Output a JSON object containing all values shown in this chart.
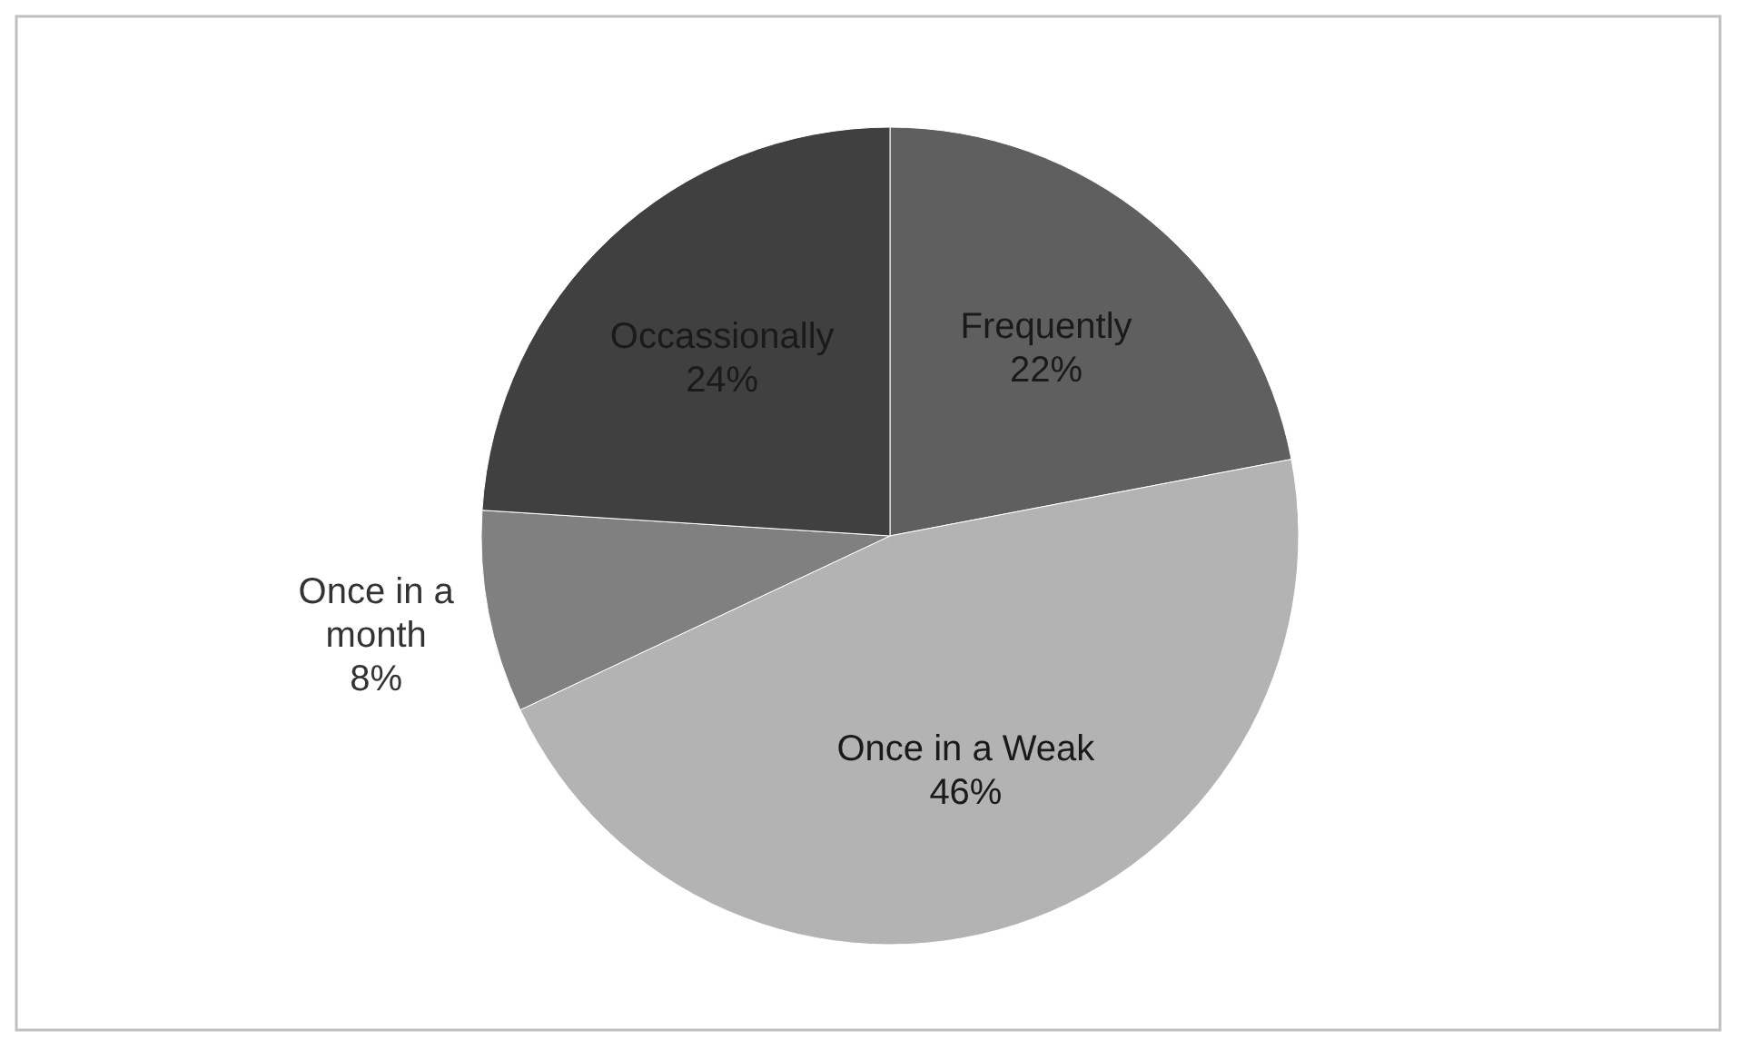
{
  "chart_data": {
    "type": "pie",
    "categories": [
      "Frequently",
      "Once in a Weak",
      "Once in a month",
      "Occassionally"
    ],
    "values": [
      22,
      46,
      8,
      24
    ],
    "value_labels": [
      "22%",
      "46%",
      "8%",
      "24%"
    ],
    "colors": [
      "#5f5f5f",
      "#b3b3b3",
      "#808080",
      "#404040"
    ]
  }
}
